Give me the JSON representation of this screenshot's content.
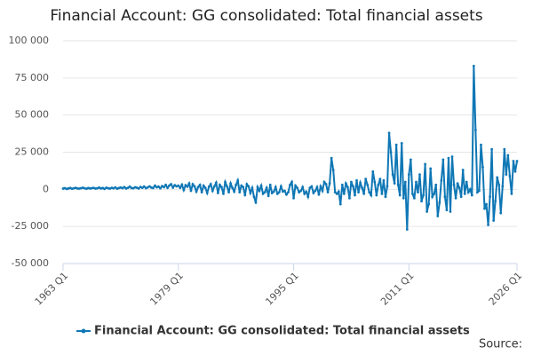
{
  "chart_data": {
    "type": "line",
    "title": "Financial Account: GG consolidated: Total financial assets",
    "source_label": "Source:",
    "categories": [
      "1963 Q1",
      null,
      null,
      null,
      null,
      null,
      null,
      null,
      null,
      null,
      null,
      null,
      null,
      null,
      null,
      null,
      null,
      null,
      null,
      null,
      null,
      null,
      null,
      null,
      null,
      null,
      null,
      null,
      null,
      null,
      null,
      null,
      null,
      null,
      null,
      null,
      null,
      null,
      null,
      null,
      null,
      null,
      null,
      null,
      null,
      null,
      null,
      null,
      null,
      null,
      null,
      null,
      null,
      null,
      null,
      null,
      null,
      null,
      null,
      null,
      null,
      null,
      null,
      null,
      "1979 Q1",
      null,
      null,
      null,
      null,
      null,
      null,
      null,
      null,
      null,
      null,
      null,
      null,
      null,
      null,
      null,
      null,
      null,
      null,
      null,
      null,
      null,
      null,
      null,
      null,
      null,
      null,
      null,
      null,
      null,
      null,
      null,
      null,
      null,
      null,
      null,
      null,
      null,
      null,
      null,
      null,
      null,
      null,
      null,
      null,
      null,
      null,
      null,
      null,
      null,
      null,
      null,
      null,
      null,
      null,
      null,
      null,
      null,
      null,
      null,
      null,
      null,
      null,
      null,
      "1995 Q1",
      null,
      null,
      null,
      null,
      null,
      null,
      null,
      null,
      null,
      null,
      null,
      null,
      null,
      null,
      null,
      null,
      null,
      null,
      null,
      null,
      null,
      null,
      null,
      null,
      null,
      null,
      null,
      null,
      null,
      null,
      null,
      null,
      null,
      null,
      null,
      null,
      null,
      null,
      null,
      null,
      null,
      null,
      null,
      null,
      null,
      null,
      null,
      null,
      null,
      null,
      null,
      null,
      null,
      null,
      null,
      null,
      null,
      null,
      null,
      null,
      null,
      null,
      null,
      "2011 Q1",
      null,
      null,
      null,
      null,
      null,
      null,
      null,
      null,
      null,
      null,
      null,
      null,
      null,
      null,
      null,
      null,
      null,
      null,
      null,
      null,
      null,
      null,
      null,
      null,
      null,
      null,
      null,
      null,
      null,
      null,
      null,
      null,
      null,
      null,
      null,
      null,
      null,
      null,
      null,
      null,
      null,
      null,
      null,
      null,
      null,
      null,
      null,
      null,
      null,
      null,
      null,
      null,
      null,
      null,
      null,
      null,
      null,
      null,
      null,
      "2026 Q1"
    ],
    "series": [
      {
        "name": "Financial Account: GG consolidated: Total financial assets",
        "color": "#0f77b5",
        "values": [
          500,
          800,
          300,
          600,
          900,
          400,
          700,
          1000,
          600,
          500,
          800,
          1100,
          700,
          400,
          900,
          600,
          800,
          1000,
          500,
          700,
          1200,
          600,
          900,
          300,
          1100,
          800,
          500,
          1000,
          700,
          1300,
          400,
          900,
          1200,
          800,
          1500,
          600,
          1000,
          1800,
          900,
          700,
          1400,
          1100,
          600,
          1600,
          1000,
          1900,
          800,
          1300,
          2000,
          1200,
          900,
          2500,
          1400,
          1800,
          700,
          2200,
          1500,
          3000,
          1000,
          2600,
          3500,
          1200,
          2800,
          2000,
          2500,
          1000,
          3200,
          -500,
          2800,
          1800,
          4000,
          -1000,
          3500,
          2000,
          -1500,
          1500,
          3000,
          -2000,
          2500,
          1000,
          -2500,
          1800,
          3500,
          -1000,
          2000,
          4500,
          -2500,
          3000,
          1500,
          -3000,
          5000,
          2000,
          -2000,
          4000,
          1000,
          -1500,
          3000,
          6000,
          -2000,
          2500,
          1500,
          -4000,
          3500,
          2000,
          -2500,
          1000,
          -5000,
          -9000,
          1500,
          -1000,
          2500,
          -3000,
          -2000,
          1000,
          -4500,
          3000,
          -2500,
          -1500,
          1500,
          -3000,
          -2000,
          2000,
          -1500,
          -1000,
          -3500,
          -2000,
          3000,
          5000,
          -6000,
          2500,
          1000,
          -2000,
          -1000,
          1500,
          -3000,
          -1500,
          -5000,
          1000,
          2000,
          -2500,
          -1000,
          1500,
          -3500,
          2000,
          -1000,
          5000,
          3500,
          -2000,
          4000,
          21000,
          13000,
          -2000,
          -3000,
          -1500,
          -10000,
          3000,
          -3000,
          4000,
          1500,
          -6000,
          5000,
          2000,
          -4000,
          6000,
          -2000,
          4500,
          1000,
          -3000,
          7000,
          3000,
          -2000,
          -4000,
          12000,
          5000,
          -4000,
          3000,
          7000,
          -3000,
          6000,
          -5000,
          2000,
          38000,
          25000,
          10000,
          4000,
          30000,
          3000,
          -4000,
          31000,
          -6000,
          5000,
          -27000,
          10000,
          20000,
          -3000,
          -6000,
          5000,
          -2000,
          10000,
          -8000,
          -4000,
          17000,
          -15000,
          -10000,
          14000,
          -5000,
          -3000,
          3000,
          -18000,
          -9000,
          6000,
          20000,
          -5000,
          -14000,
          21000,
          -15000,
          22000,
          3000,
          -6000,
          4000,
          1000,
          -5000,
          13000,
          -3000,
          5000,
          -2000,
          0,
          -4000,
          83000,
          40000,
          -2000,
          -1000,
          30000,
          15000,
          -13000,
          -10000,
          -24000,
          -5000,
          27000,
          -21000,
          -8000,
          8000,
          3000,
          -16000,
          2000,
          27000,
          10000,
          23000,
          9000,
          -3000,
          19000,
          12000,
          19000
        ]
      }
    ],
    "ylim": [
      -50000,
      100000
    ],
    "yticks": [
      {
        "value": -50000,
        "label": "-50 000"
      },
      {
        "value": -25000,
        "label": "-25 000"
      },
      {
        "value": 0,
        "label": "0"
      },
      {
        "value": 25000,
        "label": "25 000"
      },
      {
        "value": 50000,
        "label": "50 000"
      },
      {
        "value": 75000,
        "label": "75 000"
      },
      {
        "value": 100000,
        "label": "100 000"
      }
    ],
    "grid": true
  }
}
